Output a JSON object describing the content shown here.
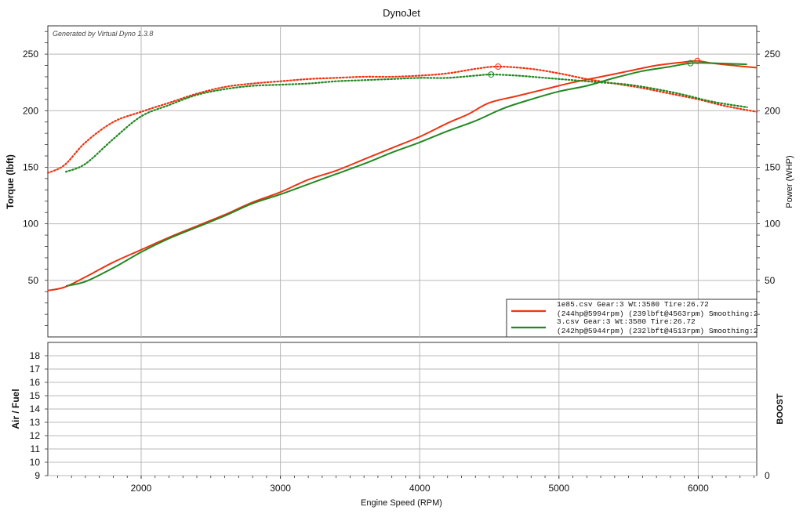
{
  "chart_data": {
    "type": "line",
    "title": "DynoJet",
    "generated_by": "Generated by Virtual Dyno 1.3.8",
    "xlabel": "Engine Speed (RPM)",
    "top_panel": {
      "ylabel_left": "Torque (lbft)",
      "ylabel_right": "Power (WHP)",
      "xlim": [
        1330,
        6420
      ],
      "ylim": [
        0,
        275
      ],
      "x_ticks": [
        2000,
        3000,
        4000,
        5000,
        6000
      ],
      "y_ticks_left": [
        50,
        100,
        150,
        200,
        250
      ],
      "y_ticks_right": [
        50,
        100,
        150,
        200,
        250
      ],
      "grid": true,
      "legend_position": "bottom-right",
      "series": [
        {
          "name": "1e85.csv Gear:3 Wt:3580 Tire:26.72",
          "detail": "(244hp@5994rpm) (239lbft@4563rpm) Smoothing:2",
          "color": "#ee3311",
          "metric": "power",
          "style": "solid",
          "x": [
            1330,
            1450,
            1600,
            1800,
            2000,
            2200,
            2400,
            2600,
            2800,
            3000,
            3200,
            3400,
            3600,
            3800,
            4000,
            4200,
            4350,
            4500,
            4700,
            4900,
            5100,
            5300,
            5500,
            5700,
            5900,
            5994,
            6100,
            6250,
            6420
          ],
          "y": [
            41,
            44,
            53,
            66,
            77,
            88,
            98,
            108,
            119,
            128,
            139,
            147,
            157,
            167,
            177,
            189,
            197,
            207,
            213,
            219,
            225,
            230,
            235,
            240,
            243,
            244,
            242,
            240,
            238
          ]
        },
        {
          "name": "1e85.csv Gear:3 Wt:3580 Tire:26.72",
          "color": "#ee3311",
          "metric": "torque",
          "style": "dotted",
          "x": [
            1330,
            1450,
            1600,
            1800,
            2000,
            2200,
            2400,
            2600,
            2800,
            3000,
            3200,
            3400,
            3600,
            3800,
            4000,
            4200,
            4400,
            4563,
            4800,
            5000,
            5200,
            5400,
            5600,
            5800,
            6000,
            6200,
            6420
          ],
          "y": [
            145,
            152,
            172,
            190,
            199,
            207,
            215,
            221,
            224,
            226,
            228,
            229,
            230,
            230,
            231,
            233,
            237,
            239,
            237,
            233,
            228,
            224,
            220,
            215,
            210,
            204,
            199
          ]
        },
        {
          "name": "3.csv Gear:3 Wt:3580 Tire:26.72",
          "detail": "(242hp@5944rpm) (232lbft@4513rpm) Smoothing:2",
          "color": "#228822",
          "metric": "power",
          "style": "solid",
          "x": [
            1460,
            1600,
            1800,
            2000,
            2200,
            2400,
            2600,
            2800,
            3000,
            3200,
            3400,
            3600,
            3800,
            4000,
            4200,
            4400,
            4600,
            4800,
            5000,
            5200,
            5400,
            5600,
            5800,
            5944,
            6100,
            6350
          ],
          "y": [
            45,
            49,
            61,
            75,
            87,
            97,
            107,
            118,
            126,
            135,
            144,
            153,
            163,
            172,
            182,
            191,
            202,
            210,
            217,
            222,
            229,
            235,
            239,
            242,
            242,
            241
          ]
        },
        {
          "name": "3.csv Gear:3 Wt:3580 Tire:26.72",
          "color": "#228822",
          "metric": "torque",
          "style": "dotted",
          "x": [
            1460,
            1600,
            1800,
            2000,
            2200,
            2400,
            2600,
            2800,
            3000,
            3200,
            3400,
            3600,
            3800,
            4000,
            4200,
            4400,
            4513,
            4700,
            4900,
            5100,
            5300,
            5500,
            5700,
            5900,
            6100,
            6350
          ],
          "y": [
            146,
            153,
            175,
            195,
            205,
            214,
            219,
            222,
            223,
            224,
            226,
            227,
            228,
            229,
            229,
            231,
            232,
            231,
            229,
            227,
            225,
            223,
            219,
            214,
            208,
            203
          ]
        }
      ],
      "markers": [
        {
          "series_color": "#ee3311",
          "x": 4563,
          "y": 239
        },
        {
          "series_color": "#ee3311",
          "x": 5994,
          "y": 244
        },
        {
          "series_color": "#228822",
          "x": 4513,
          "y": 232
        },
        {
          "series_color": "#228822",
          "x": 5944,
          "y": 242
        }
      ]
    },
    "bottom_panel": {
      "ylabel_left": "Air / Fuel",
      "ylabel_right": "BOOST",
      "ylim": [
        9,
        19
      ],
      "y_ticks_left": [
        9,
        10,
        11,
        12,
        13,
        14,
        15,
        16,
        17,
        18
      ],
      "y_ticks_right": [
        0
      ],
      "grid": true
    }
  }
}
